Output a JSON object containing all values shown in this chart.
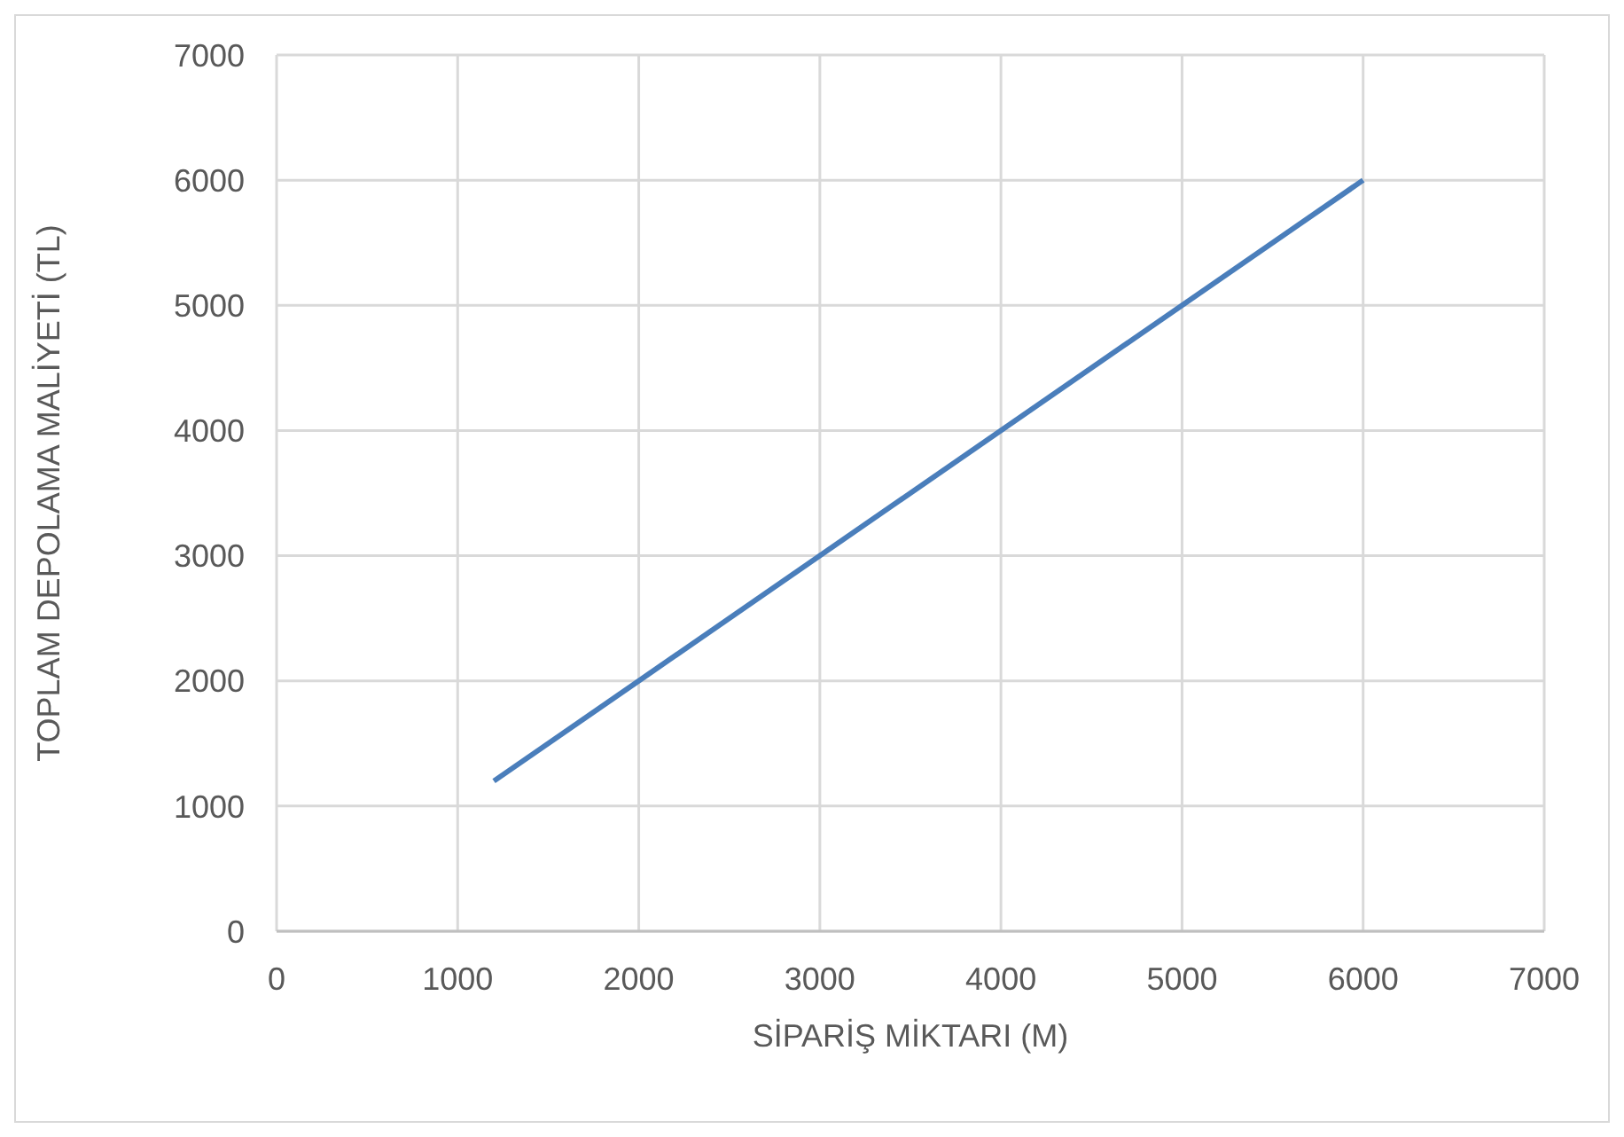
{
  "chart_data": {
    "type": "line",
    "xlabel": "SİPARİŞ MİKTARI (M)",
    "ylabel": "TOPLAM DEPOLAMA MALİYETİ (TL)",
    "x": [
      1200,
      6000
    ],
    "series": [
      {
        "color": "#4a7ebb",
        "values": [
          1200,
          6000
        ]
      }
    ],
    "xlim": [
      0,
      7000
    ],
    "xticks": [
      0,
      1000,
      2000,
      3000,
      4000,
      5000,
      6000,
      7000
    ],
    "ylim": [
      0,
      7000
    ],
    "yticks": [
      0,
      1000,
      2000,
      3000,
      4000,
      5000,
      6000,
      7000
    ],
    "grid": true
  }
}
